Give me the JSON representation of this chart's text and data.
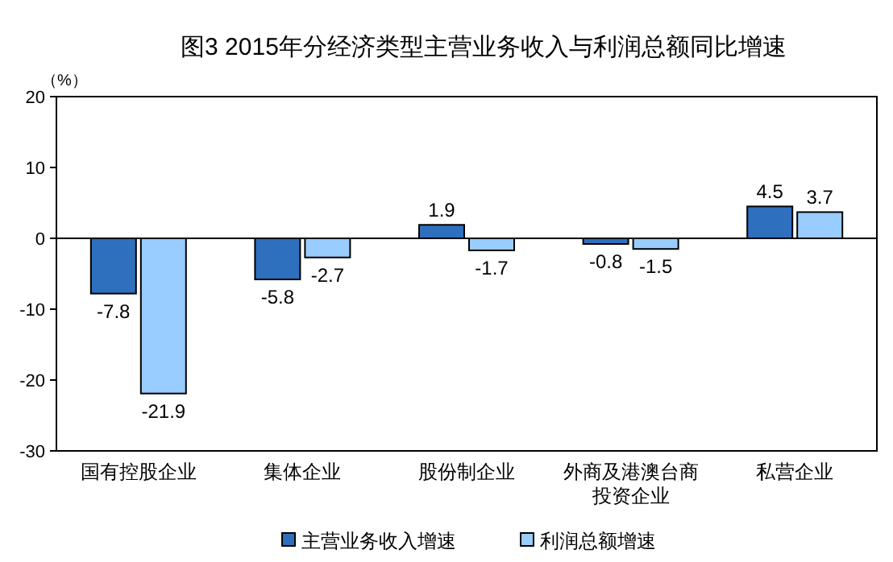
{
  "chart_data": {
    "type": "bar",
    "title": "图3  2015年分经济类型主营业务收入与利润总额同比增速",
    "ylabel": "（%）",
    "categories": [
      "国有控股企业",
      "集体企业",
      "股份制企业",
      "外商及港澳台商投资企业",
      "私营企业"
    ],
    "series": [
      {
        "name": "主营业务收入增速",
        "color": "#2e6fbe",
        "values": [
          -7.8,
          -5.8,
          1.9,
          -0.8,
          4.5
        ]
      },
      {
        "name": "利润总额增速",
        "color": "#99ccff",
        "values": [
          -21.9,
          -2.7,
          -1.7,
          -1.5,
          3.7
        ]
      }
    ],
    "ylim": [
      -30,
      20
    ],
    "yticks": [
      -30,
      -20,
      -10,
      0,
      10,
      20
    ],
    "data_labels": true,
    "legend": "bottom"
  }
}
